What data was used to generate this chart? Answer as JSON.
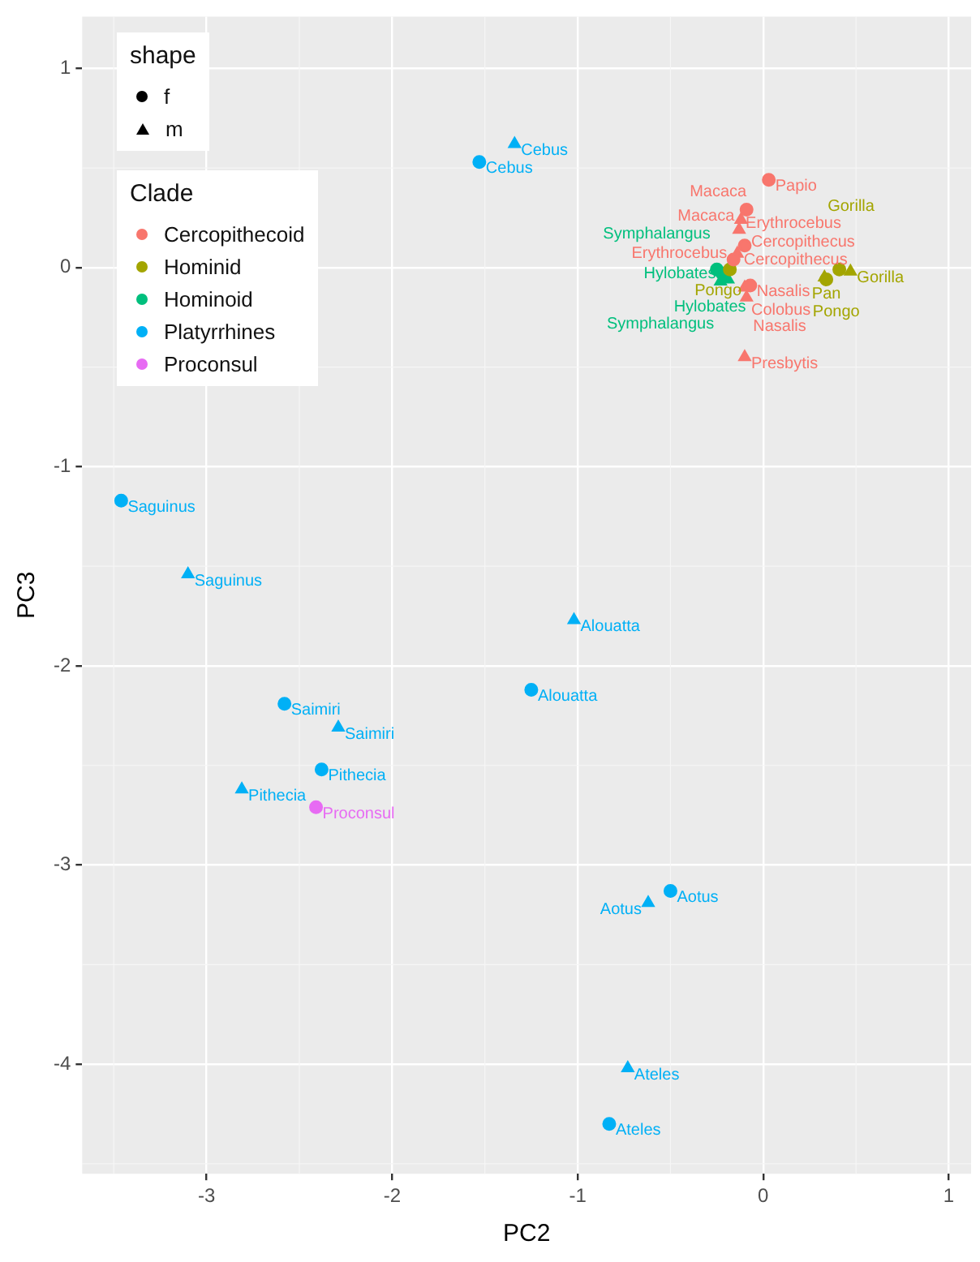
{
  "chart_data": {
    "type": "scatter",
    "xlabel": "PC2",
    "ylabel": "PC3",
    "legend_title": "Clade",
    "legend": "top left",
    "grid": true,
    "annotations": [
      "shape",
      "f",
      "m"
    ],
    "xlim": [
      -3.67,
      1.12
    ],
    "xticks": [
      -3,
      -2,
      -1,
      0,
      1
    ],
    "ylim": [
      -4.55,
      1.26
    ],
    "yticks": [
      -4,
      -3,
      -2,
      -1,
      0,
      1
    ],
    "series": [
      {
        "name": "Cercopithecoid",
        "color": "#f8766d",
        "marker": "circle",
        "x": [
          0.03,
          -0.09,
          -0.16,
          -0.1,
          -0.07
        ],
        "values": [
          0.44,
          0.29,
          0.04,
          0.11,
          -0.09
        ],
        "value_labels": [
          "Papio",
          "Macaca",
          "Erythrocebus",
          "Cercopithecus",
          "Nasalis"
        ]
      },
      {
        "color": "#f8766d",
        "marker": "triangle",
        "x": [
          -0.12,
          -0.13,
          -0.14,
          -0.1,
          -0.09,
          -0.1
        ],
        "values": [
          0.24,
          0.19,
          0.07,
          -0.1,
          -0.15,
          -0.45
        ],
        "value_labels": [
          "Macaca",
          "Erythrocebus",
          "Cercopithecus",
          "Colobus",
          "Nasalis",
          "Presbytis"
        ]
      },
      {
        "name": "Hominid",
        "color": "#a3a500",
        "marker": "circle",
        "x": [
          -0.18,
          0.34,
          0.41
        ],
        "values": [
          -0.01,
          -0.06,
          -0.01
        ],
        "value_labels": [
          "Pongo",
          "Pan",
          "Gorilla"
        ]
      },
      {
        "color": "#a3a500",
        "marker": "triangle",
        "x": [
          0.33,
          0.47
        ],
        "values": [
          -0.05,
          -0.02
        ],
        "value_labels": [
          "Pongo",
          "Gorilla"
        ]
      },
      {
        "name": "Hominoid",
        "color": "#00bf7d",
        "marker": "circle",
        "x": [
          -0.22,
          -0.25
        ],
        "values": [
          -0.03,
          -0.01
        ],
        "value_labels": [
          "Hylobates",
          "Symphalangus"
        ]
      },
      {
        "color": "#00bf7d",
        "marker": "triangle",
        "x": [
          -0.19,
          -0.23
        ],
        "values": [
          -0.06,
          -0.07
        ],
        "value_labels": [
          "Hylobates",
          "Symphalangus"
        ]
      },
      {
        "name": "Platyrrhines",
        "color": "#00b0f6",
        "marker": "circle",
        "x": [
          -1.53,
          -3.46,
          -1.25,
          -2.58,
          -2.38,
          -0.5,
          -0.83
        ],
        "values": [
          0.53,
          -1.17,
          -2.12,
          -2.19,
          -2.52,
          -3.13,
          -4.3
        ],
        "value_labels": [
          "Cebus",
          "Saguinus",
          "Alouatta",
          "Saimiri",
          "Pithecia",
          "Aotus",
          "Ateles"
        ]
      },
      {
        "color": "#00b0f6",
        "marker": "triangle",
        "x": [
          -1.34,
          -3.1,
          -1.02,
          -2.29,
          -2.81,
          -0.62,
          -0.73
        ],
        "values": [
          0.62,
          -1.54,
          -1.77,
          -2.31,
          -2.62,
          -3.19,
          -4.02
        ],
        "value_labels": [
          "Cebus",
          "Saguinus",
          "Alouatta",
          "Saimiri",
          "Pithecia",
          "Aotus",
          "Ateles"
        ]
      },
      {
        "name": "Proconsul",
        "color": "#e76bf3",
        "marker": "circle",
        "x": [
          -2.41
        ],
        "values": [
          -2.71
        ],
        "value_labels": [
          "Proconsul"
        ]
      }
    ]
  }
}
